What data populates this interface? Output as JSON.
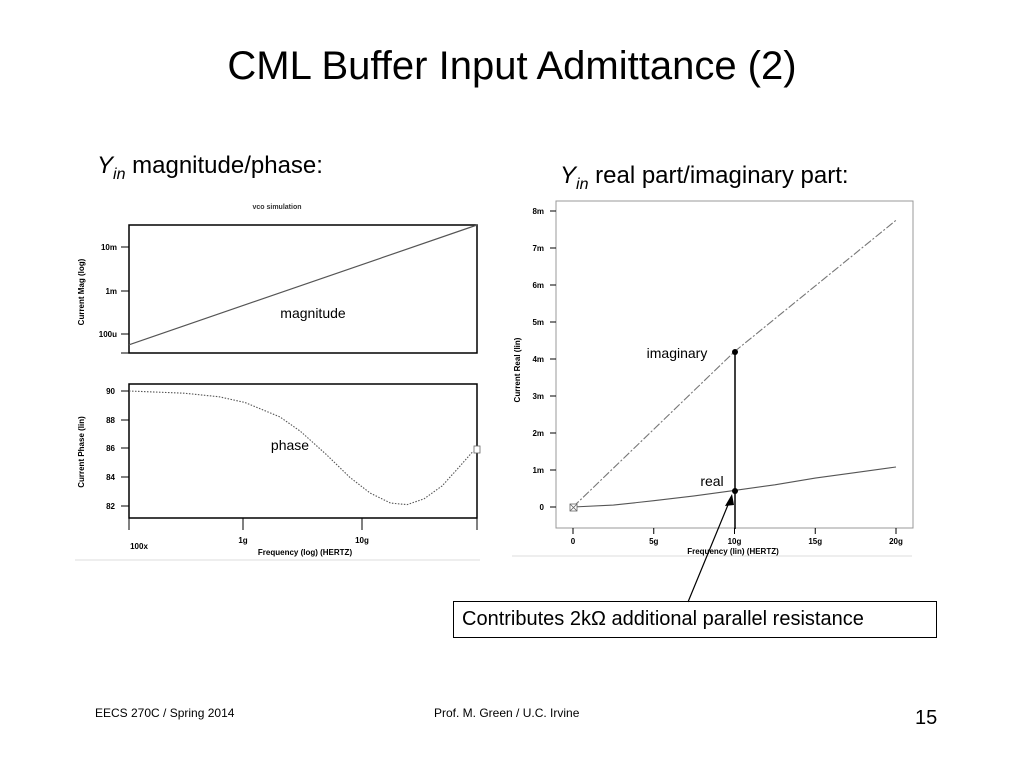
{
  "slide": {
    "title": "CML Buffer Input Admittance (2)",
    "left_heading": {
      "symbol": "Y",
      "subscript": "in",
      "text": "magnitude/phase:"
    },
    "right_heading": {
      "symbol": "Y",
      "subscript": "in",
      "text": "real part/imaginary part:"
    },
    "callout": "Contributes 2kΩ additional parallel resistance",
    "footer_left": "EECS 270C / Spring 2014",
    "footer_center": "Prof. M. Green / U.C. Irvine",
    "page_number": "15"
  },
  "chart_data": [
    {
      "type": "line",
      "panel": "magnitude",
      "title": "vco simulation",
      "ylabel": "Current Mag (log)",
      "xlabel": "",
      "y_scale": "log",
      "x_scale": "log",
      "y_ticks": [
        "10m",
        "1m",
        "100u"
      ],
      "series": [
        {
          "name": "magnitude",
          "x": [
            0.1,
            100
          ],
          "y": [
            6e-05,
            0.055
          ]
        }
      ],
      "annotations": [
        "magnitude"
      ]
    },
    {
      "type": "line",
      "panel": "phase",
      "ylabel": "Current Phase (lin)",
      "xlabel": "Frequency (log) (HERTZ)",
      "x_scale": "log",
      "x_ticks": [
        "100x",
        "1g",
        "10g"
      ],
      "y_ticks": [
        "90",
        "88",
        "86",
        "84",
        "82"
      ],
      "ylim": [
        81.6,
        90.4
      ],
      "series": [
        {
          "name": "phase",
          "x": [
            0.1,
            0.3,
            0.6,
            1,
            2,
            3,
            5,
            8,
            12,
            18,
            25,
            35,
            50,
            70,
            90,
            100
          ],
          "y": [
            90,
            89.85,
            89.6,
            89.2,
            88.2,
            87.2,
            85.6,
            84,
            82.9,
            82.2,
            82.1,
            82.5,
            83.4,
            84.7,
            85.7,
            85.9
          ]
        }
      ],
      "annotations": [
        "phase"
      ]
    },
    {
      "type": "line",
      "panel": "real-imaginary",
      "ylabel": "Current Real (lin)",
      "xlabel": "Frequency (lin) (HERTZ)",
      "x_ticks": [
        "0",
        "5g",
        "10g",
        "15g",
        "20g"
      ],
      "y_ticks": [
        "8m",
        "7m",
        "6m",
        "5m",
        "4m",
        "3m",
        "2m",
        "1m",
        "0"
      ],
      "xlim": [
        0,
        20
      ],
      "ylim": [
        0,
        8
      ],
      "series": [
        {
          "name": "imaginary",
          "x": [
            0,
            10,
            20
          ],
          "y": [
            0,
            4.2,
            7.75
          ]
        },
        {
          "name": "real",
          "x": [
            0,
            2.5,
            5,
            7.5,
            10,
            12.5,
            15,
            17.5,
            20
          ],
          "y": [
            0,
            0.05,
            0.17,
            0.3,
            0.45,
            0.6,
            0.78,
            0.93,
            1.08
          ]
        }
      ],
      "annotations": [
        "imaginary",
        "real"
      ]
    }
  ]
}
